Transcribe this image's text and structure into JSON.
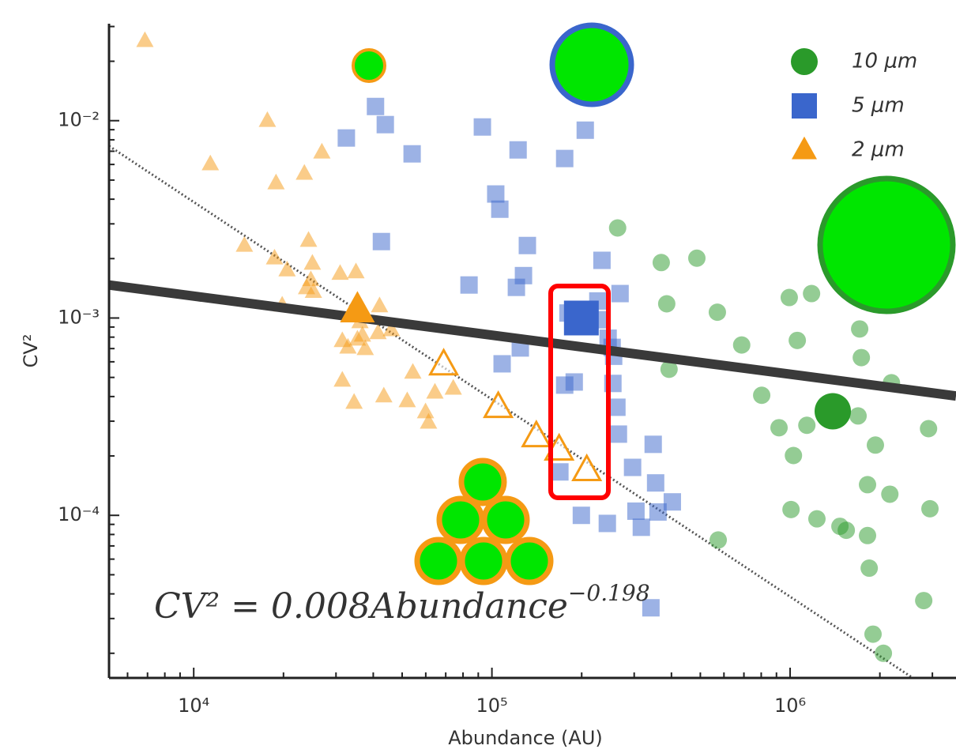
{
  "chart_data": {
    "type": "scatter",
    "xlabel": "Abundance (AU)",
    "ylabel": "CV²",
    "xlog": true,
    "ylog": true,
    "xlim": [
      5200,
      3600000
    ],
    "ylim": [
      1.5e-05,
      0.031
    ],
    "xticks": [
      {
        "value": 10000,
        "label": "10⁴"
      },
      {
        "value": 100000,
        "label": "10⁵"
      },
      {
        "value": 1000000,
        "label": "10⁶"
      }
    ],
    "yticks": [
      {
        "value": 0.0001,
        "label": "10⁻⁴"
      },
      {
        "value": 0.001,
        "label": "10⁻³"
      },
      {
        "value": 0.01,
        "label": "10⁻²"
      }
    ],
    "legend": "upper right",
    "series": [
      {
        "name": "10 μm",
        "color": "#2a9a2a",
        "marker": "circle",
        "x": [
          264000,
          369700,
          486700,
          385700,
          570200,
          993400,
          1180000,
          688000,
          1057000,
          1711000,
          1733000,
          2187000,
          392700,
          803000,
          1690000,
          2912000,
          1138000,
          918000,
          1026000,
          1932000,
          1818000,
          2160000,
          2944000,
          1007000,
          1230000,
          1469000,
          1543000,
          1818000,
          1842000,
          2806000,
          1897000,
          2055000,
          574000
        ],
        "values": [
          0.00286,
          0.00191,
          0.00201,
          0.00118,
          0.00107,
          0.00127,
          0.00133,
          0.00073,
          0.00077,
          0.00088,
          0.00063,
          0.00047,
          0.00055,
          0.000406,
          0.000319,
          0.000275,
          0.000286,
          0.000278,
          0.000201,
          0.000227,
          0.000143,
          0.000128,
          0.000108,
          0.000107,
          9.6e-05,
          8.8e-05,
          8.4e-05,
          7.9e-05,
          5.4e-05,
          3.7e-05,
          2.5e-05,
          2e-05,
          7.5e-05
        ],
        "mean": {
          "x": 1390000,
          "y": 0.000337
        }
      },
      {
        "name": "5 μm",
        "color": "#3a66cc",
        "marker": "square",
        "x": [
          40700,
          32500,
          43900,
          54000,
          92900,
          122400,
          175400,
          205600,
          103000,
          106300,
          42600,
          131500,
          233900,
          127600,
          83800,
          120800,
          269000,
          226600,
          179900,
          228000,
          245300,
          253000,
          256000,
          124500,
          108200,
          254500,
          262500,
          188800,
          175400,
          265600,
          347400,
          296300,
          354000,
          402700,
          360600,
          304100,
          317000,
          243800,
          199500,
          341400,
          169000
        ],
        "values": [
          0.0118,
          0.00817,
          0.00955,
          0.00679,
          0.00929,
          0.00711,
          0.00643,
          0.00895,
          0.00425,
          0.00356,
          0.00244,
          0.00233,
          0.00196,
          0.00164,
          0.00147,
          0.00143,
          0.00133,
          0.00122,
          0.00106,
          0.00098,
          0.00079,
          0.00071,
          0.00064,
          0.000705,
          0.000586,
          0.000466,
          0.000353,
          0.000474,
          0.000457,
          0.000258,
          0.000229,
          0.000175,
          0.000146,
          0.000117,
          0.000104,
          0.000105,
          8.7e-05,
          9.1e-05,
          0.0001,
          3.4e-05,
          0.000166
        ],
        "mean": {
          "x": 199500,
          "y": 0.001
        }
      },
      {
        "name": "2 μm",
        "color": "#f59a14",
        "marker": "triangle",
        "x": [
          6860,
          11370,
          17660,
          18880,
          23500,
          26900,
          14790,
          18660,
          24270,
          20560,
          25000,
          30970,
          35000,
          24700,
          25200,
          19800,
          23900,
          42000,
          46000,
          31500,
          35400,
          37600,
          36800,
          41500,
          54300,
          64400,
          74200,
          31500,
          34500,
          43400,
          52000,
          59900,
          61300,
          32900,
          36100
        ],
        "values": [
          0.0254,
          0.00603,
          0.01,
          0.00483,
          0.0054,
          0.00692,
          0.00233,
          0.00201,
          0.00247,
          0.00175,
          0.00189,
          0.00168,
          0.00171,
          0.00156,
          0.00136,
          0.00116,
          0.00142,
          0.00115,
          0.00087,
          0.000766,
          0.00078,
          0.000698,
          0.000817,
          0.00084,
          0.00053,
          0.00042,
          0.00044,
          0.000483,
          0.000373,
          0.000402,
          0.00038,
          0.000334,
          0.000296,
          0.00071,
          0.000955
        ],
        "mean": {
          "x": 35400,
          "y": 0.0011
        }
      }
    ],
    "open_points": {
      "color": "#f59a14",
      "x": [
        68900,
        105000,
        140900,
        168000,
        208000
      ],
      "values": [
        0.00058,
        0.000353,
        0.000251,
        0.000215,
        0.000169
      ]
    },
    "fit": {
      "coef": 0.008,
      "exponent": -0.198
    },
    "poisson_line": {
      "coef": 38.7,
      "exponent": -1
    },
    "annotation": "CV² = 0.008Abundance",
    "annotation_exponent": "−0.198"
  }
}
